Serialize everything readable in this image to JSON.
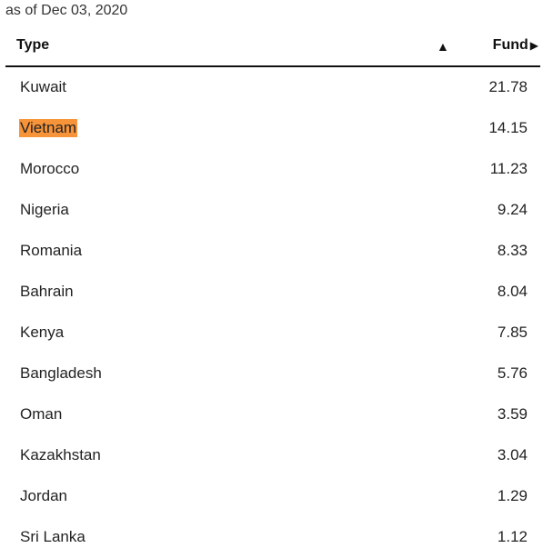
{
  "as_of": "as of Dec 03, 2020",
  "table": {
    "headers": {
      "type": "Type",
      "sort_indicator": "▲",
      "fund": "Fund",
      "fund_arrow": "▶"
    },
    "highlight_color": "#f7943a",
    "rows": [
      {
        "name": "Kuwait",
        "value": "21.78"
      },
      {
        "name": "Vietnam",
        "value": "14.15",
        "highlighted": true
      },
      {
        "name": "Morocco",
        "value": "11.23"
      },
      {
        "name": "Nigeria",
        "value": "9.24"
      },
      {
        "name": "Romania",
        "value": "8.33"
      },
      {
        "name": "Bahrain",
        "value": "8.04"
      },
      {
        "name": "Kenya",
        "value": "7.85"
      },
      {
        "name": "Bangladesh",
        "value": "5.76"
      },
      {
        "name": "Oman",
        "value": "3.59"
      },
      {
        "name": "Kazakhstan",
        "value": "3.04"
      },
      {
        "name": "Jordan",
        "value": "1.29"
      },
      {
        "name": "Sri Lanka",
        "value": "1.12"
      }
    ]
  }
}
